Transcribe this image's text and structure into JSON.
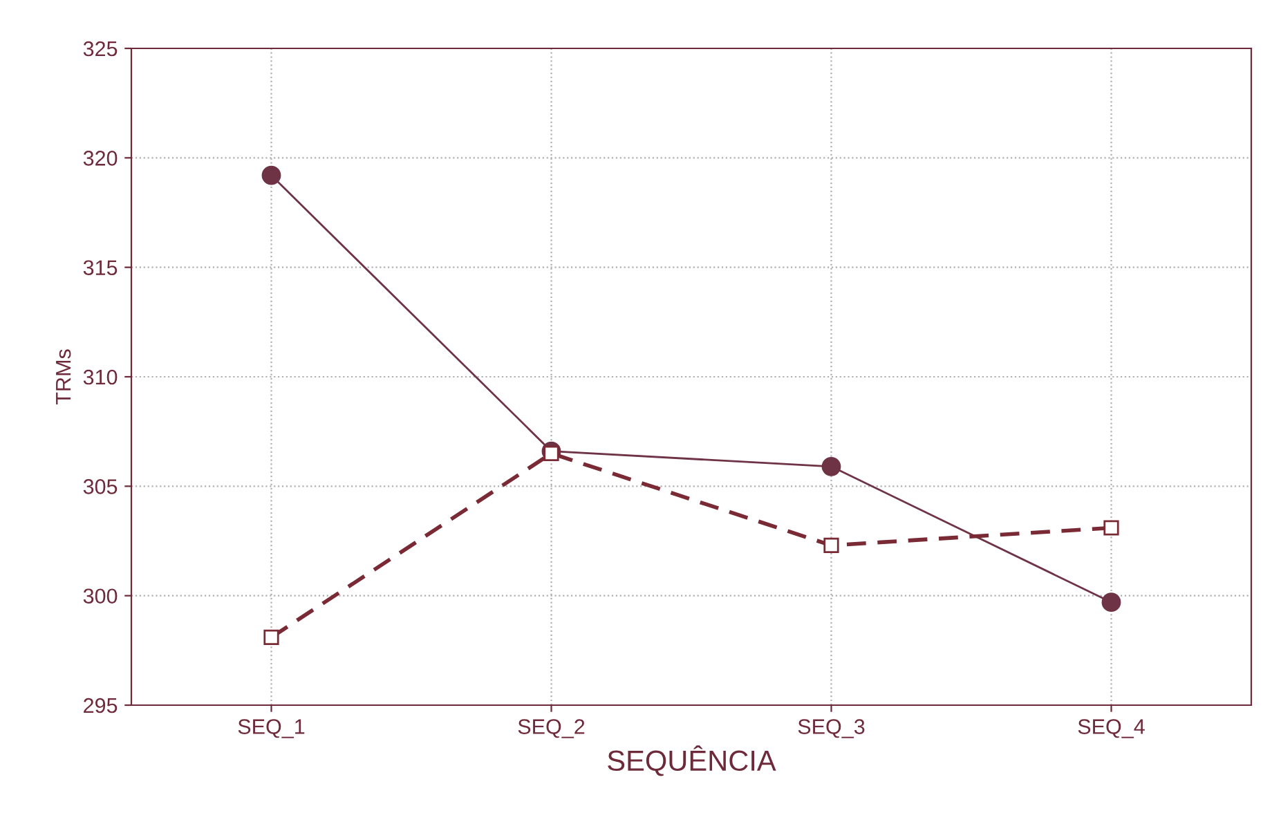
{
  "chart_data": {
    "type": "line",
    "xlabel": "SEQUÊNCIA",
    "ylabel": "TRMs",
    "categories": [
      "SEQ_1",
      "SEQ_2",
      "SEQ_3",
      "SEQ_4"
    ],
    "series": [
      {
        "color": "#6e3345",
        "values": [
          319.2,
          306.6,
          305.9,
          299.7
        ],
        "marker": "circle",
        "line_style": "solid"
      },
      {
        "color": "#7a2a35",
        "values": [
          298.1,
          306.5,
          302.3,
          303.1
        ],
        "marker": "square",
        "line_style": "dashed"
      }
    ],
    "ylim": [
      295,
      325
    ],
    "yticks": [
      295,
      300,
      305,
      310,
      315,
      320,
      325
    ],
    "grid": true
  }
}
